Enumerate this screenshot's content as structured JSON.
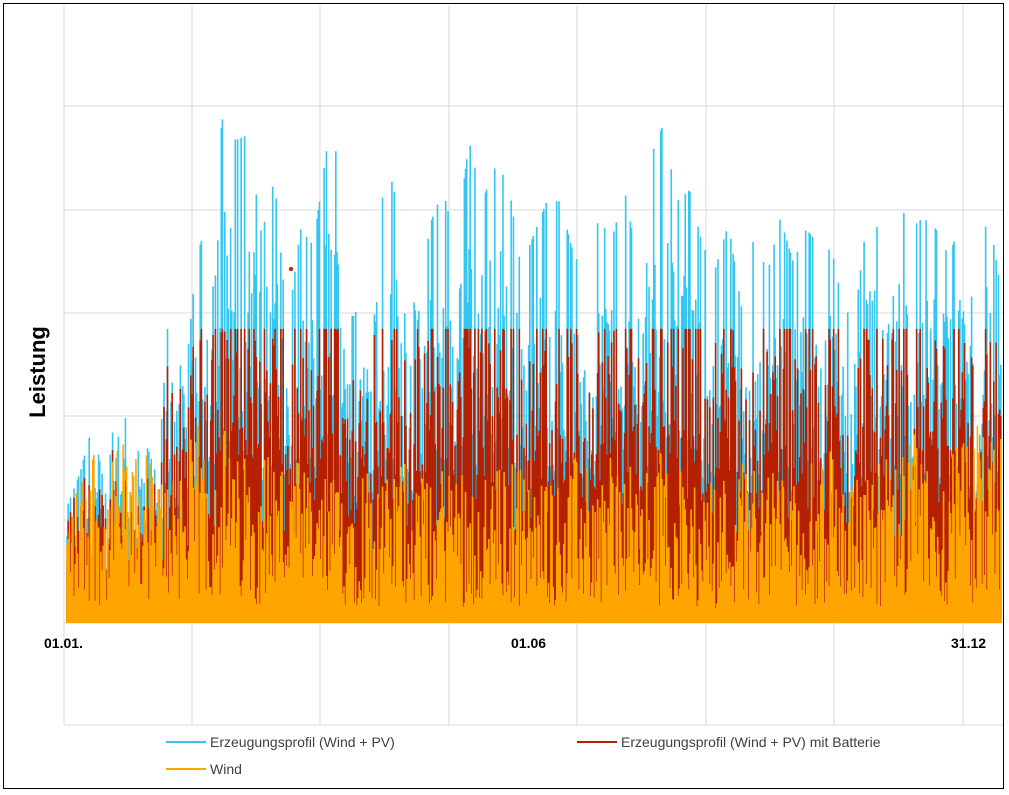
{
  "chart_data": {
    "type": "line",
    "title": "",
    "ylabel": "Leistung",
    "xlabel": "",
    "x_tick_labels": [
      "01.01.",
      "01.06",
      "31.12"
    ],
    "grid": true,
    "legend_position": "bottom",
    "battery_cap_level": 0.53,
    "series": [
      {
        "name": "Erzeugungsprofil (Wind + PV)",
        "color": "#33c6f0",
        "peaks": [
          0.21,
          0.27,
          0.36,
          0.23,
          0.45,
          0.29,
          0.33,
          0.26,
          0.62,
          0.41,
          0.66,
          0.74,
          0.91,
          0.87,
          0.88,
          0.7,
          0.8,
          0.53,
          0.71,
          0.68,
          0.85,
          0.85,
          0.55,
          0.59,
          0.75,
          0.8,
          0.7,
          0.54,
          0.72,
          0.78,
          0.68,
          0.87,
          0.76,
          0.82,
          0.8,
          0.64,
          0.7,
          0.76,
          0.76,
          0.67,
          0.62,
          0.73,
          0.69,
          0.78,
          0.65,
          0.84,
          0.9,
          0.76,
          0.78,
          0.68,
          0.64,
          0.72,
          0.57,
          0.7,
          0.63,
          0.73,
          0.65,
          0.71,
          0.68,
          0.67,
          0.55,
          0.6,
          0.79,
          0.62,
          0.77,
          0.71,
          0.73,
          0.71,
          0.66,
          0.73,
          0.54,
          0.75,
          0.6
        ]
      },
      {
        "name": "Erzeugungsprofil (Wind + PV) mit Batterie",
        "color": "#b52000",
        "peaks": [
          0.21,
          0.27,
          0.36,
          0.23,
          0.45,
          0.29,
          0.33,
          0.26,
          0.53,
          0.41,
          0.53,
          0.53,
          0.53,
          0.53,
          0.53,
          0.53,
          0.53,
          0.53,
          0.53,
          0.53,
          0.53,
          0.53,
          0.53,
          0.53,
          0.53,
          0.53,
          0.53,
          0.53,
          0.53,
          0.53,
          0.53,
          0.53,
          0.53,
          0.53,
          0.53,
          0.53,
          0.53,
          0.53,
          0.53,
          0.53,
          0.53,
          0.53,
          0.53,
          0.53,
          0.53,
          0.53,
          0.53,
          0.53,
          0.53,
          0.53,
          0.53,
          0.53,
          0.53,
          0.53,
          0.53,
          0.53,
          0.53,
          0.53,
          0.53,
          0.53,
          0.53,
          0.53,
          0.53,
          0.53,
          0.53,
          0.53,
          0.53,
          0.53,
          0.53,
          0.53,
          0.53,
          0.53,
          0.5
        ]
      },
      {
        "name": "Wind",
        "color": "#ffa500",
        "peaks": [
          0.21,
          0.27,
          0.36,
          0.23,
          0.35,
          0.29,
          0.33,
          0.26,
          0.32,
          0.31,
          0.36,
          0.33,
          0.37,
          0.3,
          0.31,
          0.33,
          0.32,
          0.29,
          0.3,
          0.24,
          0.27,
          0.26,
          0.28,
          0.31,
          0.25,
          0.27,
          0.31,
          0.29,
          0.25,
          0.3,
          0.31,
          0.27,
          0.26,
          0.28,
          0.3,
          0.29,
          0.24,
          0.31,
          0.25,
          0.3,
          0.29,
          0.27,
          0.33,
          0.3,
          0.26,
          0.28,
          0.32,
          0.3,
          0.24,
          0.27,
          0.26,
          0.28,
          0.3,
          0.32,
          0.28,
          0.31,
          0.25,
          0.3,
          0.27,
          0.33,
          0.29,
          0.26,
          0.31,
          0.3,
          0.28,
          0.35,
          0.32,
          0.27,
          0.31,
          0.33,
          0.36,
          0.35,
          0.37
        ]
      }
    ]
  }
}
